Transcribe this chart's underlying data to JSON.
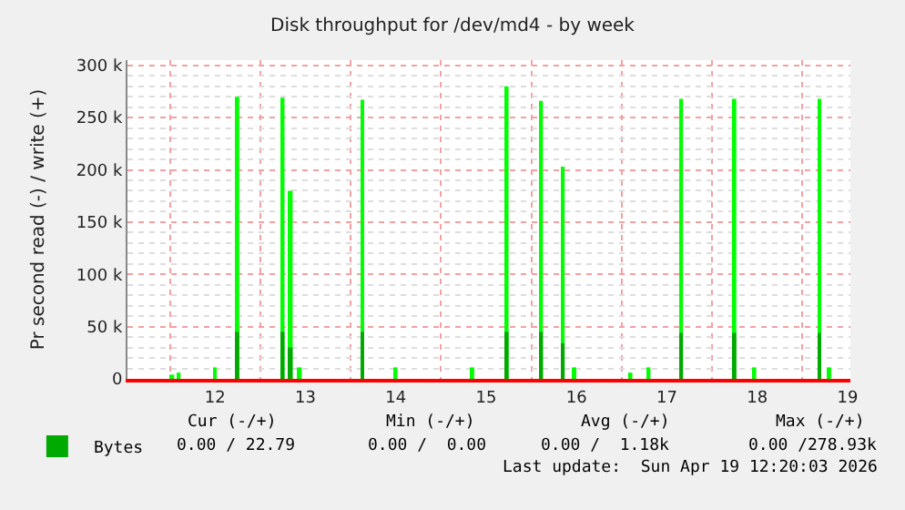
{
  "chart_data": {
    "type": "bar",
    "title": "Disk throughput for /dev/md4 - by week",
    "ylabel": "Pr second read (-) / write (+)",
    "x": [
      12.03,
      12.1,
      12.5,
      12.75,
      13.25,
      13.34,
      13.44,
      14.13,
      14.5,
      15.35,
      15.73,
      16.11,
      16.35,
      16.48,
      17.1,
      17.3,
      17.66,
      18.25,
      18.47,
      19.19,
      19.3
    ],
    "series": [
      {
        "color": "#00ff00",
        "values": [
          4000,
          6000,
          11000,
          270000,
          269000,
          180000,
          11000,
          267000,
          11000,
          11000,
          280000,
          266000,
          203000,
          11000,
          6000,
          11000,
          268000,
          268000,
          11000,
          268000,
          11000
        ]
      },
      {
        "name": "Bytes",
        "color": "#00aa00",
        "values": [
          null,
          null,
          null,
          45000,
          45000,
          30000,
          null,
          45000,
          null,
          null,
          45000,
          45000,
          34000,
          null,
          null,
          null,
          44000,
          44000,
          null,
          44000,
          null
        ]
      }
    ],
    "xlim": [
      11.53,
      19.53
    ],
    "xticks": [
      {
        "value": 12.5,
        "label": "12"
      },
      {
        "value": 13.5,
        "label": "13"
      },
      {
        "value": 14.5,
        "label": "14"
      },
      {
        "value": 15.5,
        "label": "15"
      },
      {
        "value": 16.5,
        "label": "16"
      },
      {
        "value": 17.5,
        "label": "17"
      },
      {
        "value": 18.5,
        "label": "18"
      },
      {
        "value": 19.5,
        "label": "19"
      }
    ],
    "ylim": [
      0,
      305000
    ],
    "yticks": [
      0,
      {
        "value": 50000,
        "label": "50 k"
      },
      {
        "value": 100000,
        "label": "100 k"
      },
      {
        "value": 150000,
        "label": "150 k"
      },
      {
        "value": 200000,
        "label": "200 k"
      },
      {
        "value": 250000,
        "label": "250 k"
      },
      {
        "value": 300000,
        "label": "300 k"
      }
    ],
    "grid": true,
    "legend": "bottom left",
    "annotations": [
      "Cur (-/+)",
      "Min (-/+)",
      "Avg (-/+)",
      "Max (-/+)",
      "0.00 / 22.79",
      "0.00 /  0.00",
      "0.00 /  1.18k",
      "0.00 /278.93k",
      "Last update:  Sun Apr 19 12:20:03 2026"
    ]
  }
}
